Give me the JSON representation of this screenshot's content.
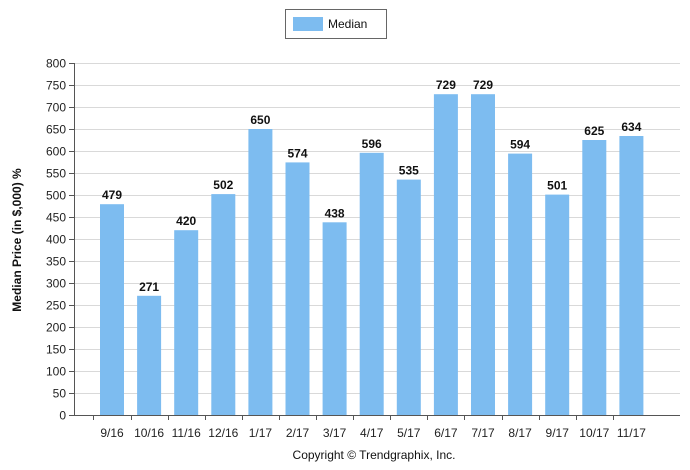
{
  "chart_data": {
    "type": "bar",
    "categories": [
      "9/16",
      "10/16",
      "11/16",
      "12/16",
      "1/17",
      "2/17",
      "3/17",
      "4/17",
      "5/17",
      "6/17",
      "7/17",
      "8/17",
      "9/17",
      "10/17",
      "11/17"
    ],
    "series": [
      {
        "name": "Median",
        "values": [
          479,
          271,
          420,
          502,
          650,
          574,
          438,
          596,
          535,
          729,
          729,
          594,
          501,
          625,
          634
        ],
        "color": "#7dbcf0"
      }
    ],
    "ylabel": "Median Price (in $,000) %",
    "xlabel": "",
    "ylim": [
      0,
      800
    ],
    "yticks": [
      0,
      50,
      100,
      150,
      200,
      250,
      300,
      350,
      400,
      450,
      500,
      550,
      600,
      650,
      700,
      750,
      800
    ],
    "grid": true,
    "legend_position": "top-center",
    "data_labels": true
  },
  "footer": {
    "copyright": "Copyright © Trendgraphix, Inc."
  }
}
